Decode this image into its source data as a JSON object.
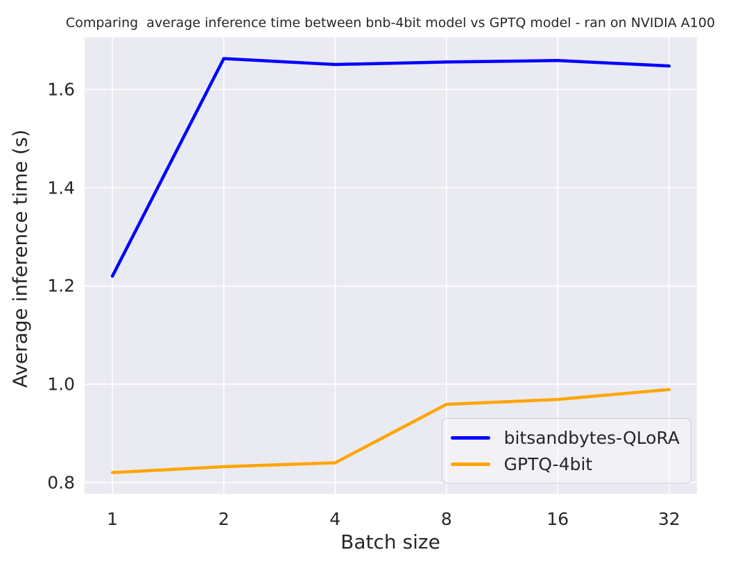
{
  "chart_data": {
    "type": "line",
    "title": "Comparing  average inference time between bnb-4bit model vs GPTQ model - ran on NVIDIA A100",
    "xlabel": "Batch size",
    "ylabel": "Average inference time (s)",
    "categories": [
      1,
      2,
      4,
      8,
      16,
      32
    ],
    "x_spacing": "equal-spacing (log2-like) for batch sizes",
    "yticks": [
      0.8,
      1.0,
      1.2,
      1.4,
      1.6
    ],
    "ylim": [
      0.777,
      1.706
    ],
    "grid": true,
    "grid_color": "#ffffff",
    "plot_background": "#eaeaf2",
    "text_color": "#262626",
    "legend_position": "lower right inside plot",
    "series": [
      {
        "name": "bitsandbytes-QLoRA",
        "color": "#0000ff",
        "values": [
          1.22,
          1.663,
          1.651,
          1.656,
          1.659,
          1.648
        ]
      },
      {
        "name": "GPTQ-4bit",
        "color": "#ffa500",
        "values": [
          0.82,
          0.832,
          0.84,
          0.959,
          0.969,
          0.989
        ]
      }
    ]
  }
}
